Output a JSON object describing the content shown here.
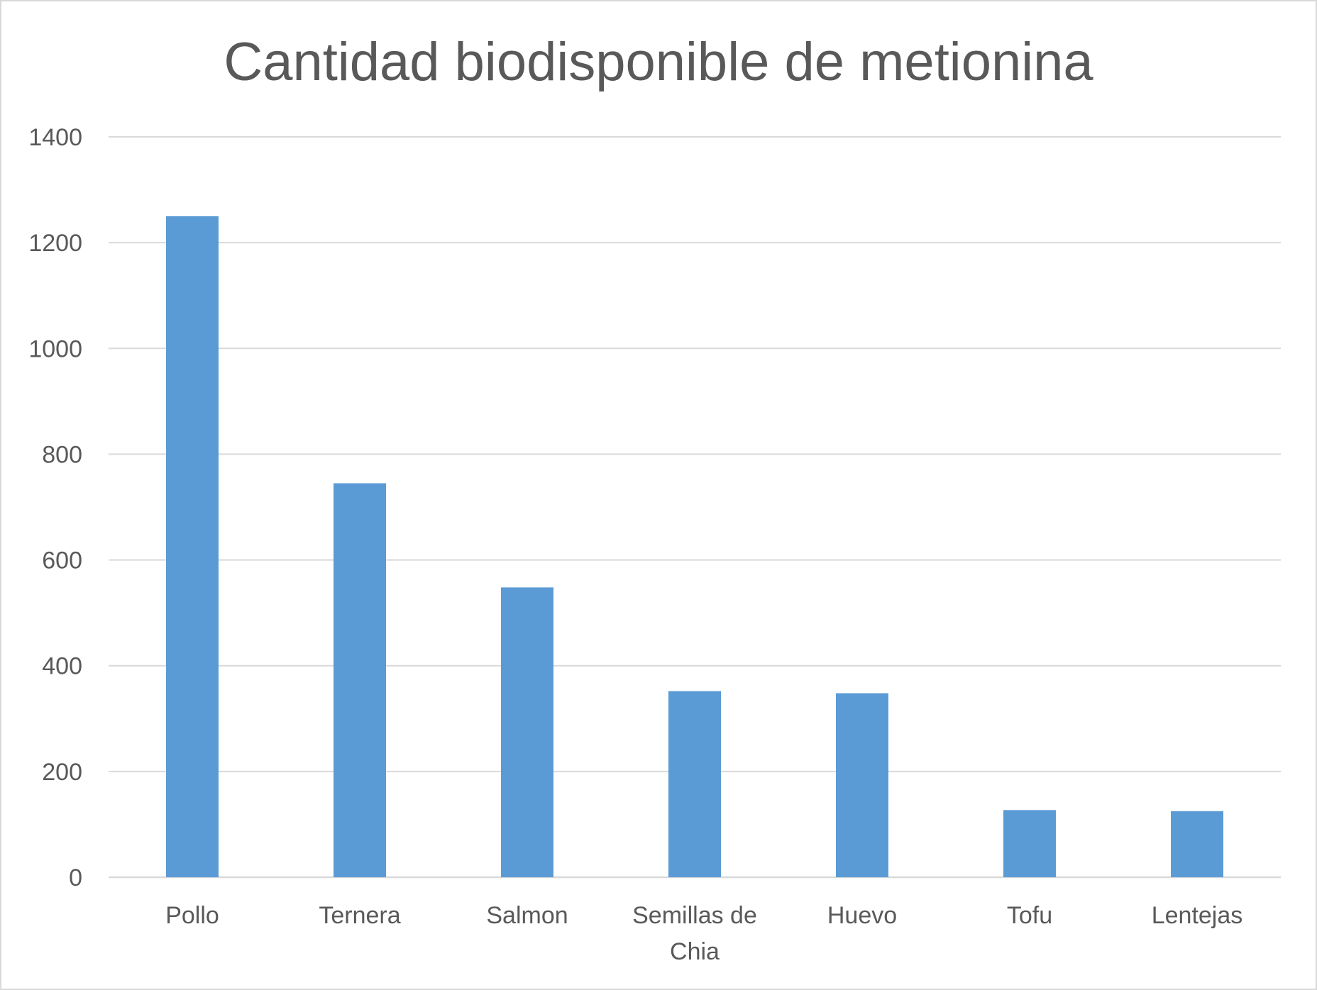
{
  "chart_data": {
    "type": "bar",
    "title": "Cantidad biodisponible de metionina",
    "xlabel": "",
    "ylabel": "",
    "categories": [
      "Pollo",
      "Ternera",
      "Salmon",
      "Semillas de Chia",
      "Huevo",
      "Tofu",
      "Lentejas"
    ],
    "category_lines": [
      [
        "Pollo"
      ],
      [
        "Ternera"
      ],
      [
        "Salmon"
      ],
      [
        "Semillas de",
        "Chia"
      ],
      [
        "Huevo"
      ],
      [
        "Tofu"
      ],
      [
        "Lentejas"
      ]
    ],
    "values": [
      1250,
      745,
      548,
      352,
      348,
      127,
      125
    ],
    "ylim": [
      0,
      1400
    ],
    "yticks": [
      "0",
      "200",
      "400",
      "600",
      "800",
      "1000",
      "1200",
      "1400"
    ],
    "grid": true,
    "legend": "none",
    "colors": {
      "bar": "#5b9bd5",
      "grid": "#d9d9d9",
      "text": "#595959"
    }
  }
}
